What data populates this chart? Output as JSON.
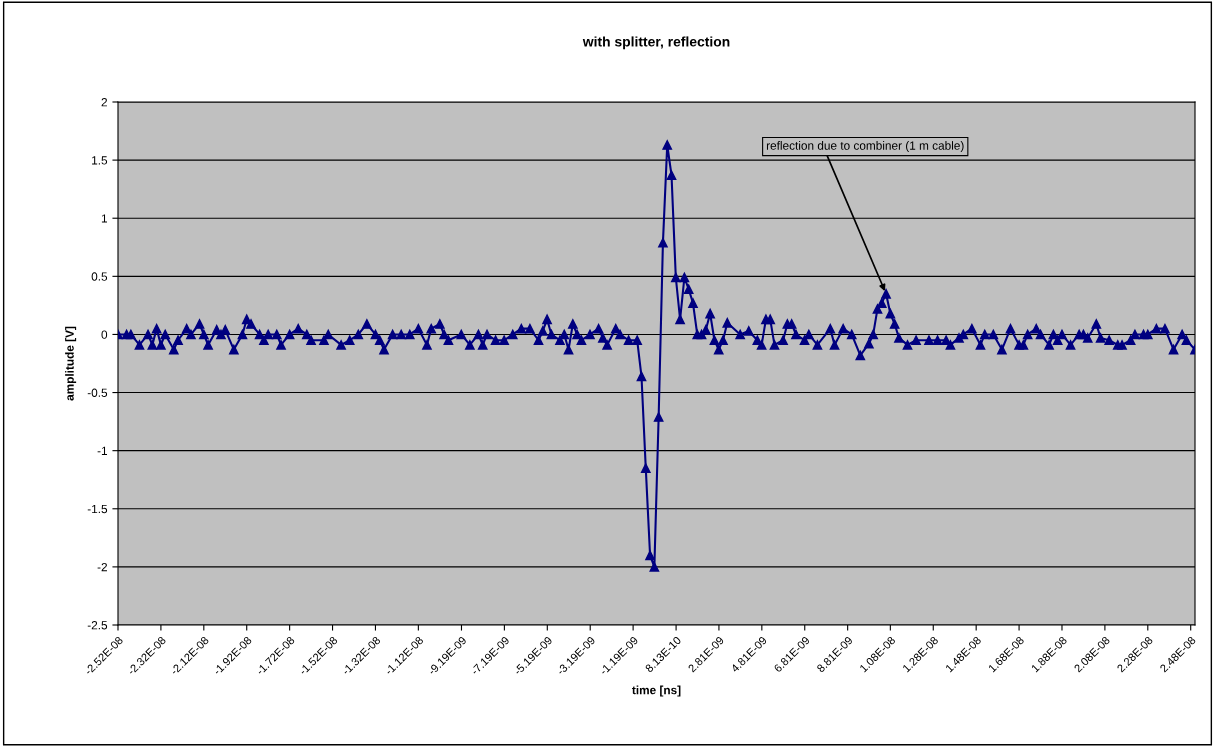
{
  "chart_data": {
    "type": "line",
    "title": "with splitter, reflection",
    "xlabel": "time [ns]",
    "ylabel": "amplitude [V]",
    "x": [
      -2.52e-08,
      -2.48e-08,
      -2.46e-08,
      -2.42e-08,
      -2.38e-08,
      -2.36e-08,
      -2.34e-08,
      -2.32e-08,
      -2.3e-08,
      -2.26e-08,
      -2.24e-08,
      -2.2e-08,
      -2.18e-08,
      -2.14e-08,
      -2.12e-08,
      -2.1e-08,
      -2.06e-08,
      -2.04e-08,
      -2.02e-08,
      -1.98e-08,
      -1.94e-08,
      -1.92e-08,
      -1.9e-08,
      -1.86e-08,
      -1.84e-08,
      -1.82e-08,
      -1.78e-08,
      -1.76e-08,
      -1.72e-08,
      -1.68e-08,
      -1.64e-08,
      -1.62e-08,
      -1.56e-08,
      -1.54e-08,
      -1.48e-08,
      -1.44e-08,
      -1.4e-08,
      -1.36e-08,
      -1.32e-08,
      -1.3e-08,
      -1.28e-08,
      -1.24e-08,
      -1.2e-08,
      -1.16e-08,
      -1.12e-08,
      -1.08e-08,
      -1.06e-08,
      -1.02e-08,
      -1e-08,
      -9.8e-09,
      -9.2e-09,
      -8.8e-09,
      -8.4e-09,
      -8.2e-09,
      -8e-09,
      -7.6e-09,
      -7.2e-09,
      -6.8e-09,
      -6.4e-09,
      -6e-09,
      -5.6e-09,
      -5.4e-09,
      -5.2e-09,
      -5e-09,
      -4.6e-09,
      -4.4e-09,
      -4.2e-09,
      -4e-09,
      -3.8e-09,
      -3.6e-09,
      -3.2e-09,
      -2.8e-09,
      -2.6e-09,
      -2.4e-09,
      -2e-09,
      -1.8e-09,
      -1.4e-09,
      -1e-09,
      -8e-10,
      -6e-10,
      -4e-10,
      -2e-10,
      0,
      2e-10,
      4e-10,
      6e-10,
      8e-10,
      1e-09,
      1.2e-09,
      1.4e-09,
      1.6e-09,
      1.8e-09,
      2e-09,
      2.2e-09,
      2.4e-09,
      2.6e-09,
      2.8e-09,
      3e-09,
      3.2e-09,
      3.8e-09,
      4.2e-09,
      4.6e-09,
      4.8e-09,
      5e-09,
      5.2e-09,
      5.4e-09,
      5.8e-09,
      6e-09,
      6.2e-09,
      6.4e-09,
      6.8e-09,
      7e-09,
      7.4e-09,
      8e-09,
      8.2e-09,
      8.6e-09,
      9e-09,
      9.4e-09,
      9.8e-09,
      1e-08,
      1.02e-08,
      1.04e-08,
      1.06e-08,
      1.08e-08,
      1.1e-08,
      1.12e-08,
      1.16e-08,
      1.2e-08,
      1.26e-08,
      1.3e-08,
      1.34e-08,
      1.36e-08,
      1.4e-08,
      1.42e-08,
      1.46e-08,
      1.5e-08,
      1.52e-08,
      1.56e-08,
      1.6e-08,
      1.64e-08,
      1.68e-08,
      1.7e-08,
      1.72e-08,
      1.76e-08,
      1.78e-08,
      1.82e-08,
      1.84e-08,
      1.86e-08,
      1.88e-08,
      1.92e-08,
      1.96e-08,
      1.98e-08,
      2e-08,
      2.04e-08,
      2.06e-08,
      2.1e-08,
      2.14e-08,
      2.16e-08,
      2.2e-08,
      2.22e-08,
      2.26e-08,
      2.28e-08,
      2.32e-08,
      2.36e-08,
      2.4e-08,
      2.44e-08,
      2.46e-08,
      2.5e-08
    ],
    "series": [
      {
        "color": "#000080",
        "values": [
          0,
          0,
          0,
          -0.09,
          0,
          -0.09,
          0.05,
          -0.09,
          0,
          -0.13,
          -0.05,
          0.05,
          0,
          0.09,
          0,
          -0.09,
          0.04,
          0,
          0.04,
          -0.13,
          0,
          0.13,
          0.09,
          0,
          -0.05,
          0,
          0,
          -0.09,
          0,
          0.05,
          0,
          -0.05,
          -0.05,
          0,
          -0.09,
          -0.05,
          0,
          0.09,
          0,
          -0.05,
          -0.13,
          0,
          0,
          0,
          0.05,
          -0.09,
          0.05,
          0.09,
          0,
          -0.05,
          0,
          -0.09,
          0,
          -0.09,
          0,
          -0.05,
          -0.05,
          0,
          0.05,
          0.05,
          -0.05,
          0.03,
          0.13,
          0,
          -0.05,
          0,
          -0.13,
          0.09,
          0,
          -0.05,
          0,
          0.05,
          -0.03,
          -0.09,
          0.05,
          0,
          -0.05,
          -0.05,
          -0.36,
          -1.15,
          -1.9,
          -2.0,
          -0.71,
          0.79,
          1.63,
          1.37,
          0.49,
          0.13,
          0.49,
          0.39,
          0.27,
          0,
          0,
          0.04,
          0.18,
          -0.05,
          -0.13,
          -0.05,
          0.1,
          0,
          0.03,
          -0.05,
          -0.09,
          0.13,
          0.13,
          -0.09,
          -0.05,
          0.09,
          0.09,
          0,
          -0.05,
          0,
          -0.09,
          0.05,
          -0.09,
          0.05,
          0,
          -0.18,
          -0.08,
          0,
          0.22,
          0.27,
          0.35,
          0.18,
          0.09,
          -0.03,
          -0.09,
          -0.05,
          -0.05,
          -0.05,
          -0.05,
          -0.09,
          -0.03,
          0,
          0.05,
          -0.09,
          0,
          0,
          -0.13,
          0.05,
          -0.09,
          -0.09,
          0,
          0.05,
          0,
          -0.09,
          0,
          -0.05,
          0,
          -0.09,
          0,
          0,
          -0.03,
          0.09,
          -0.03,
          -0.05,
          -0.09,
          -0.09,
          -0.05,
          0,
          0,
          0,
          0.05,
          0.05,
          -0.13,
          0,
          -0.05,
          -0.13
        ]
      }
    ],
    "xlim": [
      -2.52e-08,
      2.5e-08
    ],
    "xticks": [
      {
        "value": -2.52e-08,
        "label": "-2.52E-08"
      },
      {
        "value": -2.32e-08,
        "label": "-2.32E-08"
      },
      {
        "value": -2.12e-08,
        "label": "-2.12E-08"
      },
      {
        "value": -1.92e-08,
        "label": "-1.92E-08"
      },
      {
        "value": -1.72e-08,
        "label": "-1.72E-08"
      },
      {
        "value": -1.52e-08,
        "label": "-1.52E-08"
      },
      {
        "value": -1.32e-08,
        "label": "-1.32E-08"
      },
      {
        "value": -1.12e-08,
        "label": "-1.12E-08"
      },
      {
        "value": -9.19e-09,
        "label": "-9.19E-09"
      },
      {
        "value": -7.19e-09,
        "label": "-7.19E-09"
      },
      {
        "value": -5.19e-09,
        "label": "-5.19E-09"
      },
      {
        "value": -3.19e-09,
        "label": "-3.19E-09"
      },
      {
        "value": -1.19e-09,
        "label": "-1.19E-09"
      },
      {
        "value": 8.13e-10,
        "label": "8.13E-10"
      },
      {
        "value": 2.81e-09,
        "label": "2.81E-09"
      },
      {
        "value": 4.81e-09,
        "label": "4.81E-09"
      },
      {
        "value": 6.81e-09,
        "label": "6.81E-09"
      },
      {
        "value": 8.81e-09,
        "label": "8.81E-09"
      },
      {
        "value": 1.08e-08,
        "label": "1.08E-08"
      },
      {
        "value": 1.28e-08,
        "label": "1.28E-08"
      },
      {
        "value": 1.48e-08,
        "label": "1.48E-08"
      },
      {
        "value": 1.68e-08,
        "label": "1.68E-08"
      },
      {
        "value": 1.88e-08,
        "label": "1.88E-08"
      },
      {
        "value": 2.08e-08,
        "label": "2.08E-08"
      },
      {
        "value": 2.28e-08,
        "label": "2.28E-08"
      },
      {
        "value": 2.48e-08,
        "label": "2.48E-08"
      }
    ],
    "ylim": [
      -2.5,
      2
    ],
    "yticks": [
      -2.5,
      -2,
      -1.5,
      -1,
      -0.5,
      0,
      0.5,
      1,
      1.5,
      2
    ],
    "annotations": [
      {
        "text": "reflection due to combiner (1 m cable)",
        "x": 1.06e-08,
        "y": 0.35
      }
    ],
    "grid": "y",
    "legend": false,
    "marker": "triangle",
    "line_style": "solid"
  }
}
